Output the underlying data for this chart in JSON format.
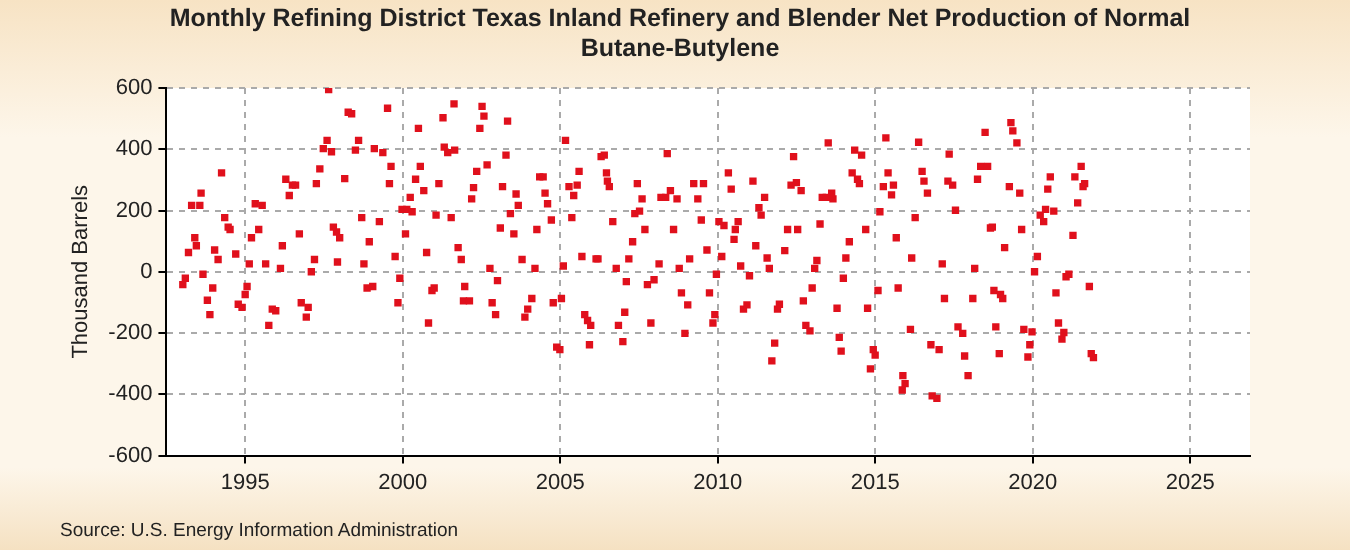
{
  "chart_data": {
    "type": "scatter",
    "title": "Monthly Refining District Texas Inland Refinery and Blender Net Production of Normal Butane-Butylene",
    "ylabel": "Thousand Barrels",
    "annotations": [
      "Source: U.S. Energy Information Administration"
    ],
    "xlim": [
      1992.5,
      2026.9
    ],
    "xticks": [
      1995,
      2000,
      2005,
      2010,
      2015,
      2020,
      2025
    ],
    "ylim": [
      -600,
      600
    ],
    "yticks": [
      -600,
      -400,
      -200,
      0,
      200,
      400,
      600
    ],
    "grid": true,
    "marker": "square",
    "legend": false,
    "series": [
      {
        "color": "#e0101c",
        "x": [
          1993.02,
          1993.1,
          1993.2,
          1993.3,
          1993.4,
          1993.45,
          1993.56,
          1993.6,
          1993.66,
          1993.8,
          1993.88,
          1993.97,
          1994.03,
          1994.14,
          1994.25,
          1994.35,
          1994.46,
          1994.52,
          1994.7,
          1994.78,
          1994.9,
          1995.0,
          1995.06,
          1995.13,
          1995.2,
          1995.32,
          1995.43,
          1995.54,
          1995.65,
          1995.75,
          1995.86,
          1995.97,
          1996.12,
          1996.18,
          1996.29,
          1996.4,
          1996.5,
          1996.6,
          1996.72,
          1996.78,
          1996.94,
          1997.0,
          1997.1,
          1997.2,
          1997.26,
          1997.37,
          1997.48,
          1997.6,
          1997.65,
          1997.74,
          1997.8,
          1997.9,
          1998.0,
          1997.93,
          1998.16,
          1998.27,
          1998.38,
          1998.5,
          1998.6,
          1998.7,
          1998.77,
          1998.87,
          1998.94,
          1999.05,
          1999.1,
          1999.26,
          1999.37,
          1999.52,
          1999.58,
          1999.63,
          1999.76,
          1999.85,
          1999.91,
          1999.98,
          2000.09,
          2000.13,
          2000.24,
          2000.3,
          2000.41,
          2000.5,
          2000.56,
          2000.67,
          2000.76,
          2000.82,
          2000.93,
          2001.0,
          2001.06,
          2001.15,
          2001.28,
          2001.32,
          2001.43,
          2001.54,
          2001.63,
          2001.65,
          2001.76,
          2001.86,
          2001.97,
          2001.93,
          2002.12,
          2002.19,
          2002.25,
          2002.35,
          2002.45,
          2002.52,
          2002.58,
          2002.68,
          2002.77,
          2002.84,
          2002.95,
          2003.01,
          2003.1,
          2003.17,
          2003.28,
          2003.33,
          2003.42,
          2003.53,
          2003.6,
          2003.67,
          2003.79,
          2003.88,
          2003.97,
          2004.1,
          2004.2,
          2004.26,
          2004.35,
          2004.46,
          2004.52,
          2004.6,
          2004.72,
          2004.78,
          2004.89,
          2004.99,
          2005.04,
          2005.1,
          2005.17,
          2005.28,
          2005.37,
          2005.43,
          2005.54,
          2005.6,
          2005.69,
          2005.78,
          2005.87,
          2005.93,
          2005.97,
          2006.14,
          2006.2,
          2006.3,
          2006.4,
          2006.47,
          2006.5,
          2006.56,
          2006.67,
          2006.78,
          2006.85,
          2006.99,
          2007.05,
          2007.1,
          2007.18,
          2007.3,
          2007.37,
          2007.45,
          2007.52,
          2007.6,
          2007.69,
          2007.77,
          2007.88,
          2007.98,
          2008.14,
          2008.2,
          2008.35,
          2008.4,
          2008.5,
          2008.6,
          2008.71,
          2008.78,
          2008.85,
          2008.96,
          2009.05,
          2009.11,
          2009.24,
          2009.37,
          2009.48,
          2009.55,
          2009.66,
          2009.74,
          2009.85,
          2009.91,
          2009.96,
          2010.04,
          2010.13,
          2010.2,
          2010.34,
          2010.43,
          2010.52,
          2010.56,
          2010.65,
          2010.73,
          2010.82,
          2010.93,
          2011.01,
          2011.12,
          2011.21,
          2011.31,
          2011.38,
          2011.49,
          2011.57,
          2011.64,
          2011.72,
          2011.81,
          2011.9,
          2011.96,
          2012.13,
          2012.22,
          2012.33,
          2012.41,
          2012.5,
          2012.54,
          2012.65,
          2012.72,
          2012.8,
          2012.93,
          2013.0,
          2013.08,
          2013.15,
          2013.25,
          2013.32,
          2013.45,
          2013.51,
          2013.62,
          2013.66,
          2013.79,
          2013.86,
          2013.92,
          2013.99,
          2014.07,
          2014.18,
          2014.27,
          2014.35,
          2014.44,
          2014.5,
          2014.57,
          2014.7,
          2014.76,
          2014.85,
          2014.94,
          2015.0,
          2015.09,
          2015.15,
          2015.26,
          2015.34,
          2015.41,
          2015.52,
          2015.58,
          2015.67,
          2015.73,
          2015.86,
          2015.88,
          2015.95,
          2016.12,
          2016.16,
          2016.27,
          2016.38,
          2016.49,
          2016.55,
          2016.66,
          2016.77,
          2016.81,
          2016.96,
          2017.03,
          2017.13,
          2017.2,
          2017.31,
          2017.35,
          2017.46,
          2017.55,
          2017.63,
          2017.78,
          2017.84,
          2017.95,
          2018.1,
          2018.16,
          2018.25,
          2018.35,
          2018.49,
          2018.57,
          2018.66,
          2018.72,
          2018.77,
          2018.83,
          2018.94,
          2018.98,
          2019.05,
          2019.11,
          2019.26,
          2019.31,
          2019.37,
          2019.5,
          2019.59,
          2019.65,
          2019.72,
          2019.85,
          2019.91,
          2019.98,
          2020.06,
          2020.15,
          2020.24,
          2020.35,
          2020.41,
          2020.48,
          2020.56,
          2020.67,
          2020.74,
          2020.82,
          2020.93,
          2020.99,
          2021.06,
          2021.15,
          2021.28,
          2021.34,
          2021.43,
          2021.54,
          2021.6,
          2021.65,
          2021.8,
          2021.86,
          2021.93
        ],
        "values": [
          -42,
          -21,
          63,
          217,
          111,
          85,
          217,
          257,
          -8,
          -93,
          -140,
          -53,
          71,
          40,
          323,
          177,
          146,
          138,
          58,
          -106,
          -116,
          -74,
          -48,
          26,
          111,
          222,
          138,
          217,
          26,
          -175,
          -122,
          -127,
          11,
          85,
          302,
          249,
          283,
          283,
          124,
          -101,
          -148,
          -116,
          0,
          40,
          288,
          336,
          402,
          429,
          595,
          392,
          146,
          130,
          111,
          32,
          304,
          521,
          516,
          397,
          429,
          177,
          26,
          -53,
          98,
          -48,
          402,
          164,
          389,
          534,
          288,
          344,
          50,
          -101,
          -21,
          204,
          124,
          204,
          243,
          196,
          302,
          468,
          344,
          265,
          63,
          -167,
          -61,
          -53,
          185,
          288,
          503,
          407,
          389,
          177,
          548,
          397,
          79,
          40,
          -48,
          -95,
          -95,
          238,
          275,
          328,
          468,
          540,
          508,
          349,
          11,
          -101,
          -140,
          -29,
          143,
          278,
          381,
          492,
          190,
          124,
          254,
          217,
          40,
          -148,
          -122,
          -87,
          11,
          138,
          310,
          310,
          257,
          222,
          169,
          -101,
          -246,
          -254,
          -87,
          19,
          429,
          278,
          177,
          249,
          283,
          328,
          50,
          -140,
          -159,
          -238,
          -175,
          42,
          42,
          376,
          381,
          323,
          296,
          278,
          164,
          11,
          -175,
          -228,
          -132,
          -32,
          42,
          98,
          190,
          288,
          198,
          238,
          138,
          -42,
          -167,
          -26,
          26,
          243,
          243,
          386,
          265,
          138,
          238,
          11,
          -69,
          -201,
          -108,
          42,
          288,
          238,
          169,
          288,
          71,
          -69,
          -167,
          -140,
          -8,
          164,
          50,
          151,
          323,
          270,
          106,
          138,
          164,
          19,
          -122,
          -108,
          -13,
          296,
          85,
          209,
          185,
          243,
          45,
          11,
          -291,
          -233,
          -122,
          -106,
          69,
          138,
          283,
          376,
          291,
          138,
          265,
          -95,
          -175,
          -193,
          -53,
          11,
          37,
          156,
          243,
          243,
          421,
          257,
          238,
          -119,
          -214,
          -259,
          -21,
          45,
          98,
          323,
          397,
          302,
          288,
          381,
          138,
          -119,
          -317,
          -254,
          -272,
          -61,
          196,
          278,
          437,
          323,
          251,
          283,
          111,
          -53,
          -386,
          -339,
          -365,
          -188,
          45,
          177,
          423,
          328,
          296,
          257,
          -238,
          -405,
          -413,
          -254,
          26,
          -87,
          296,
          384,
          283,
          201,
          -180,
          -201,
          -275,
          -339,
          -87,
          11,
          302,
          344,
          455,
          344,
          143,
          146,
          -61,
          -180,
          -267,
          -74,
          -87,
          79,
          278,
          487,
          460,
          421,
          257,
          138,
          -188,
          -278,
          -238,
          -196,
          0,
          50,
          185,
          164,
          204,
          270,
          310,
          198,
          -69,
          -167,
          -220,
          -198,
          -16,
          -8,
          119,
          310,
          225,
          344,
          278,
          288,
          -48,
          -267,
          -280
        ]
      }
    ]
  }
}
